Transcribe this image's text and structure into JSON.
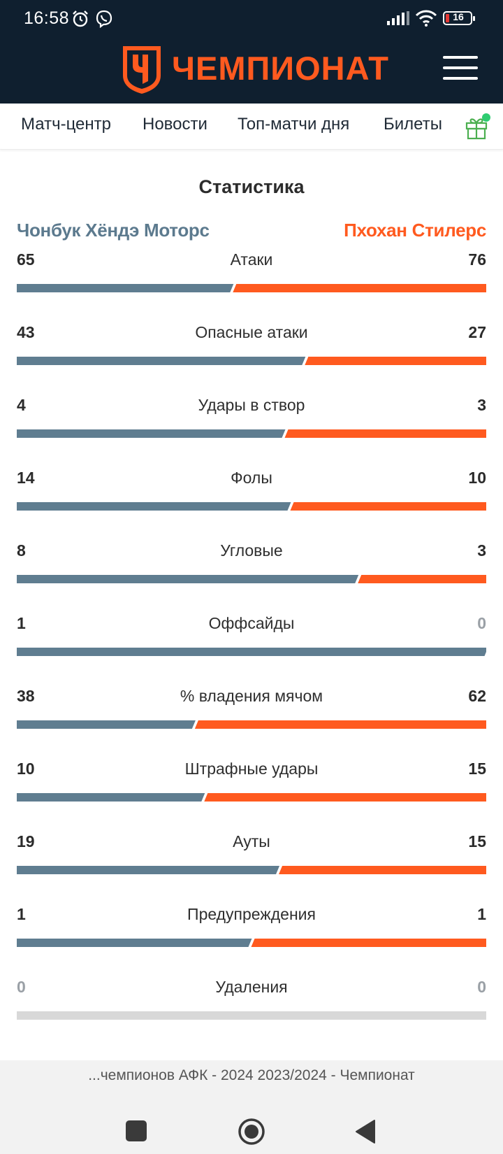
{
  "status": {
    "time": "16:58",
    "battery": "16"
  },
  "header": {
    "brand": "ЧЕМПИОНАТ"
  },
  "nav": {
    "items": [
      "Матч-центр",
      "Новости",
      "Топ-матчи дня",
      "Билеты"
    ]
  },
  "stats": {
    "title": "Статистика",
    "home_team": "Чонбук Хёндэ Моторс",
    "away_team": "Пхохан Стилерс",
    "rows": [
      {
        "label": "Атаки",
        "home": "65",
        "away": "76"
      },
      {
        "label": "Опасные атаки",
        "home": "43",
        "away": "27"
      },
      {
        "label": "Удары в створ",
        "home": "4",
        "away": "3"
      },
      {
        "label": "Фолы",
        "home": "14",
        "away": "10"
      },
      {
        "label": "Угловые",
        "home": "8",
        "away": "3"
      },
      {
        "label": "Оффсайды",
        "home": "1",
        "away": "0"
      },
      {
        "label": "% владения мячом",
        "home": "38",
        "away": "62"
      },
      {
        "label": "Штрафные удары",
        "home": "10",
        "away": "15"
      },
      {
        "label": "Ауты",
        "home": "19",
        "away": "15"
      },
      {
        "label": "Предупреждения",
        "home": "1",
        "away": "1"
      },
      {
        "label": "Удаления",
        "home": "0",
        "away": "0"
      }
    ]
  },
  "colors": {
    "home": "#5f7d90",
    "away": "#ff5a1f",
    "empty": "#d8d8d8"
  },
  "footer": {
    "title": "...чемпионов АФК - 2024 2023/2024 - Чемпионат"
  }
}
